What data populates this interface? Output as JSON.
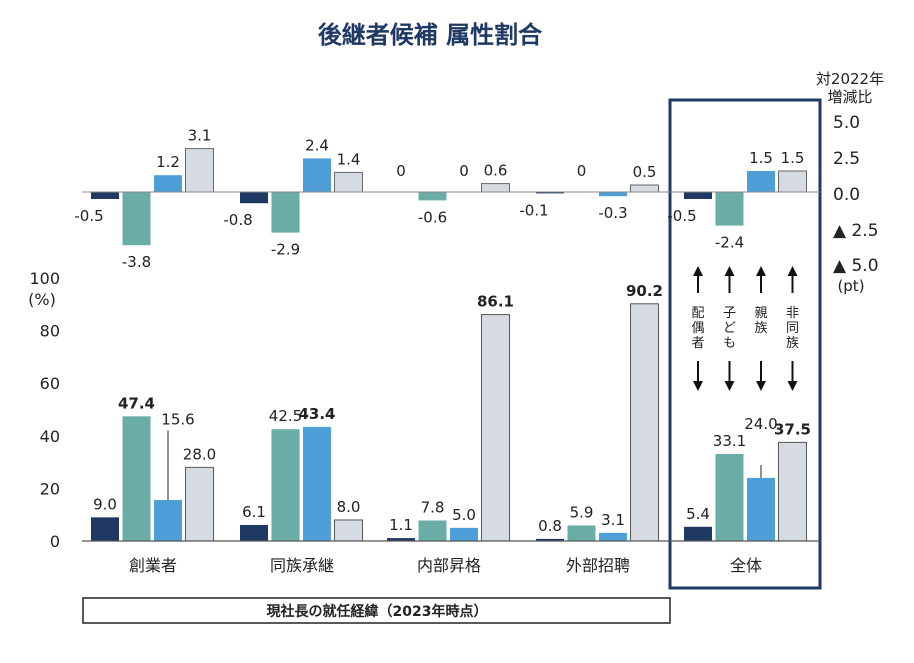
{
  "colors": {
    "navy": "#1f3864",
    "teal": "#6aaca6",
    "blue": "#4e9fd8",
    "grey": "#d6dbe3",
    "frame": "#1f3864",
    "title": "#1f3864"
  },
  "chart_data": {
    "type": "bar",
    "title": "後継者候補 属性割合",
    "categories": [
      "創業者",
      "同族承継",
      "内部昇格",
      "外部招聘",
      "全体"
    ],
    "series_labels": [
      "配偶者",
      "子ども",
      "親族",
      "非同族"
    ],
    "series_labels_vertical": [
      "配\n偶\n者",
      "子\nど\nも",
      "親\n族",
      "非\n同\n族"
    ],
    "main": {
      "ylabel": "(%)",
      "ylim": [
        0,
        100
      ],
      "yticks": [
        "0",
        "20",
        "40",
        "60",
        "80",
        "100"
      ],
      "series": [
        {
          "name": "配偶者",
          "values": [
            9.0,
            6.1,
            1.1,
            0.8,
            5.4
          ],
          "labels": [
            "9.0",
            "6.1",
            "1.1",
            "0.8",
            "5.4"
          ]
        },
        {
          "name": "子ども",
          "values": [
            47.4,
            42.5,
            7.8,
            5.9,
            33.1
          ],
          "labels": [
            "47.4",
            "42.5",
            "7.8",
            "5.9",
            "33.1"
          ]
        },
        {
          "name": "親族",
          "values": [
            15.6,
            43.4,
            5.0,
            3.1,
            24.0
          ],
          "labels": [
            "15.6",
            "43.4",
            "5.0",
            "3.1",
            "24.0"
          ]
        },
        {
          "name": "非同族",
          "values": [
            28.0,
            8.0,
            86.1,
            90.2,
            37.5
          ],
          "labels": [
            "28.0",
            "8.0",
            "86.1",
            "90.2",
            "37.5"
          ]
        }
      ],
      "max_label_bold": true
    },
    "change": {
      "ylabel_line1": "対2022年",
      "ylabel_line2": "増減比",
      "unit": "(pt)",
      "ylim": [
        -5.0,
        5.0
      ],
      "yticks": [
        "▲ 5.0",
        "▲ 2.5",
        "0.0",
        "2.5",
        "5.0"
      ],
      "series": [
        {
          "name": "配偶者",
          "values": [
            -0.5,
            -0.8,
            0,
            -0.1,
            -0.5
          ],
          "labels": [
            "-0.5",
            "-0.8",
            "0",
            "-0.1",
            "-0.5"
          ]
        },
        {
          "name": "子ども",
          "values": [
            -3.8,
            -2.9,
            -0.6,
            0,
            -2.4
          ],
          "labels": [
            "-3.8",
            "-2.9",
            "-0.6",
            "0",
            "-2.4"
          ]
        },
        {
          "name": "親族",
          "values": [
            1.2,
            2.4,
            0,
            -0.3,
            1.5
          ],
          "labels": [
            "1.2",
            "2.4",
            "0",
            "-0.3",
            "1.5"
          ]
        },
        {
          "name": "非同族",
          "values": [
            3.1,
            1.4,
            0.6,
            0.5,
            1.5
          ],
          "labels": [
            "3.1",
            "1.4",
            "0.6",
            "0.5",
            "1.5"
          ]
        }
      ]
    },
    "footer": "現社長の就任経緯（2023年時点）"
  }
}
